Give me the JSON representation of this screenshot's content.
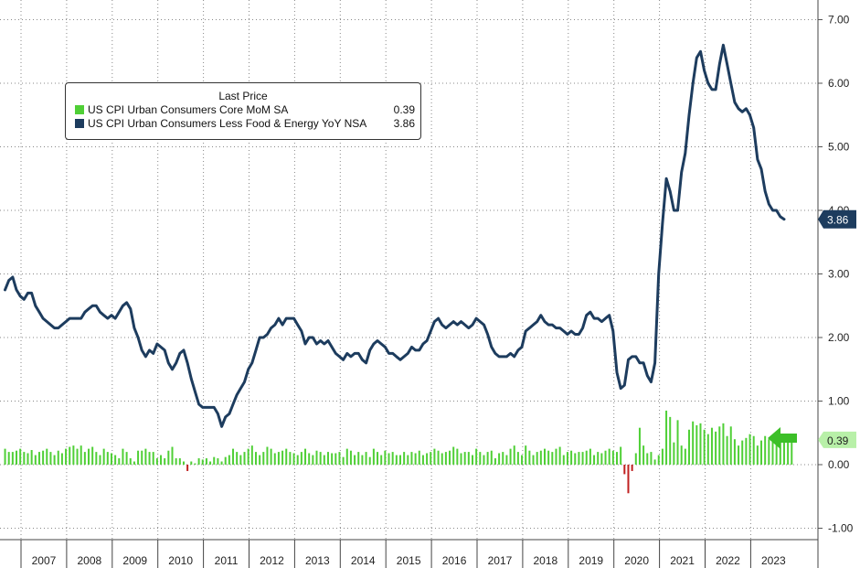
{
  "colors": {
    "core_line": "#1d3c5e",
    "mom_pos": "#4fcf36",
    "mom_neg": "#c02020",
    "grid": "#888888",
    "arrow": "#3cbf28"
  },
  "legend": {
    "title": "Last Price",
    "items": [
      {
        "name": "US CPI Urban Consumers Core MoM SA",
        "value": "0.39",
        "color": "#4fcf36"
      },
      {
        "name": "US CPI Urban Consumers Less Food & Energy YoY NSA",
        "value": "3.86",
        "color": "#1d3c5e"
      }
    ]
  },
  "last_labels": {
    "yoy": "3.86",
    "mom": "0.39"
  },
  "chart_data": {
    "type": "line+bar",
    "title": "",
    "x_start": 2006.63,
    "x_step": 0.08333,
    "years": [
      "2007",
      "2008",
      "2009",
      "2010",
      "2011",
      "2012",
      "2013",
      "2014",
      "2015",
      "2016",
      "2017",
      "2018",
      "2019",
      "2020",
      "2021",
      "2022",
      "2023"
    ],
    "y_ticks": [
      "7.00",
      "6.00",
      "5.00",
      "4.00",
      "3.00",
      "2.00",
      "1.00",
      "0.00",
      "-1.00"
    ],
    "ylim": [
      -1.0,
      7.3
    ],
    "series": [
      {
        "name": "US CPI Urban Consumers Less Food & Energy YoY NSA",
        "type": "line",
        "values": [
          2.75,
          2.9,
          2.95,
          2.75,
          2.65,
          2.6,
          2.7,
          2.7,
          2.5,
          2.4,
          2.3,
          2.25,
          2.2,
          2.15,
          2.15,
          2.2,
          2.25,
          2.3,
          2.3,
          2.3,
          2.3,
          2.4,
          2.45,
          2.5,
          2.5,
          2.4,
          2.35,
          2.3,
          2.35,
          2.3,
          2.4,
          2.5,
          2.55,
          2.45,
          2.15,
          2.0,
          1.8,
          1.7,
          1.8,
          1.75,
          1.9,
          1.85,
          1.8,
          1.6,
          1.5,
          1.6,
          1.75,
          1.8,
          1.6,
          1.35,
          1.15,
          0.95,
          0.9,
          0.9,
          0.9,
          0.9,
          0.8,
          0.6,
          0.75,
          0.8,
          0.95,
          1.1,
          1.2,
          1.3,
          1.5,
          1.6,
          1.8,
          2.0,
          2.0,
          2.05,
          2.15,
          2.2,
          2.3,
          2.2,
          2.3,
          2.3,
          2.3,
          2.2,
          2.1,
          1.9,
          2.0,
          2.0,
          1.9,
          1.95,
          1.9,
          1.95,
          1.85,
          1.75,
          1.7,
          1.65,
          1.75,
          1.7,
          1.75,
          1.75,
          1.65,
          1.6,
          1.8,
          1.9,
          1.95,
          1.9,
          1.85,
          1.75,
          1.75,
          1.7,
          1.65,
          1.7,
          1.75,
          1.85,
          1.8,
          1.8,
          1.9,
          1.95,
          2.1,
          2.25,
          2.3,
          2.2,
          2.15,
          2.2,
          2.25,
          2.2,
          2.25,
          2.2,
          2.15,
          2.2,
          2.3,
          2.25,
          2.2,
          2.05,
          1.85,
          1.75,
          1.7,
          1.7,
          1.7,
          1.75,
          1.7,
          1.8,
          1.85,
          2.1,
          2.15,
          2.2,
          2.25,
          2.35,
          2.25,
          2.2,
          2.2,
          2.15,
          2.15,
          2.1,
          2.05,
          2.1,
          2.05,
          2.05,
          2.15,
          2.35,
          2.4,
          2.3,
          2.3,
          2.25,
          2.3,
          2.35,
          2.1,
          1.45,
          1.2,
          1.25,
          1.65,
          1.7,
          1.7,
          1.6,
          1.6,
          1.4,
          1.3,
          1.6,
          3.0,
          3.8,
          4.5,
          4.3,
          4.0,
          4.0,
          4.6,
          4.9,
          5.5,
          6.0,
          6.4,
          6.5,
          6.2,
          6.0,
          5.9,
          5.9,
          6.3,
          6.6,
          6.3,
          6.0,
          5.7,
          5.6,
          5.55,
          5.6,
          5.5,
          5.3,
          4.8,
          4.65,
          4.3,
          4.1,
          4.0,
          4.0,
          3.9,
          3.86
        ]
      },
      {
        "name": "US CPI Urban Consumers Core MoM SA",
        "type": "bar",
        "values": [
          0.25,
          0.2,
          0.2,
          0.22,
          0.25,
          0.2,
          0.18,
          0.23,
          0.15,
          0.2,
          0.22,
          0.25,
          0.2,
          0.15,
          0.22,
          0.18,
          0.25,
          0.28,
          0.3,
          0.25,
          0.3,
          0.2,
          0.25,
          0.28,
          0.2,
          0.15,
          0.25,
          0.2,
          0.18,
          0.15,
          0.1,
          0.25,
          0.2,
          0.1,
          0.05,
          0.22,
          0.22,
          0.25,
          0.2,
          0.2,
          0.1,
          0.15,
          0.1,
          0.22,
          0.28,
          0.1,
          0.1,
          0.05,
          -0.1,
          0.05,
          0.02,
          0.1,
          0.08,
          0.1,
          0.05,
          0.12,
          0.1,
          0.05,
          0.12,
          0.15,
          0.25,
          0.2,
          0.15,
          0.2,
          0.25,
          0.3,
          0.2,
          0.15,
          0.2,
          0.28,
          0.25,
          0.18,
          0.2,
          0.22,
          0.25,
          0.2,
          0.18,
          0.15,
          0.2,
          0.25,
          0.18,
          0.15,
          0.22,
          0.2,
          0.15,
          0.2,
          0.18,
          0.18,
          0.2,
          0.12,
          0.25,
          0.22,
          0.15,
          0.2,
          0.15,
          0.2,
          0.12,
          0.25,
          0.2,
          0.15,
          0.22,
          0.18,
          0.2,
          0.15,
          0.15,
          0.2,
          0.15,
          0.2,
          0.18,
          0.22,
          0.15,
          0.18,
          0.2,
          0.25,
          0.22,
          0.18,
          0.2,
          0.22,
          0.28,
          0.25,
          0.18,
          0.2,
          0.2,
          0.15,
          0.25,
          0.2,
          0.15,
          0.2,
          0.22,
          0.1,
          0.18,
          0.2,
          0.15,
          0.25,
          0.3,
          0.2,
          0.15,
          0.3,
          0.22,
          0.15,
          0.2,
          0.22,
          0.25,
          0.22,
          0.2,
          0.25,
          0.28,
          0.15,
          0.2,
          0.22,
          0.18,
          0.2,
          0.2,
          0.22,
          0.25,
          0.15,
          0.2,
          0.18,
          0.22,
          0.25,
          0.22,
          0.2,
          0.28,
          -0.15,
          -0.45,
          -0.1,
          0.18,
          0.58,
          0.3,
          0.18,
          0.2,
          0.08,
          0.15,
          0.25,
          0.85,
          0.75,
          0.35,
          0.7,
          0.3,
          0.25,
          0.55,
          0.68,
          0.62,
          0.65,
          0.55,
          0.48,
          0.58,
          0.52,
          0.6,
          0.65,
          0.45,
          0.6,
          0.4,
          0.3,
          0.38,
          0.42,
          0.48,
          0.45,
          0.3,
          0.38,
          0.45,
          0.4,
          0.42,
          0.4,
          0.38,
          0.35,
          0.41,
          0.39
        ]
      }
    ]
  }
}
